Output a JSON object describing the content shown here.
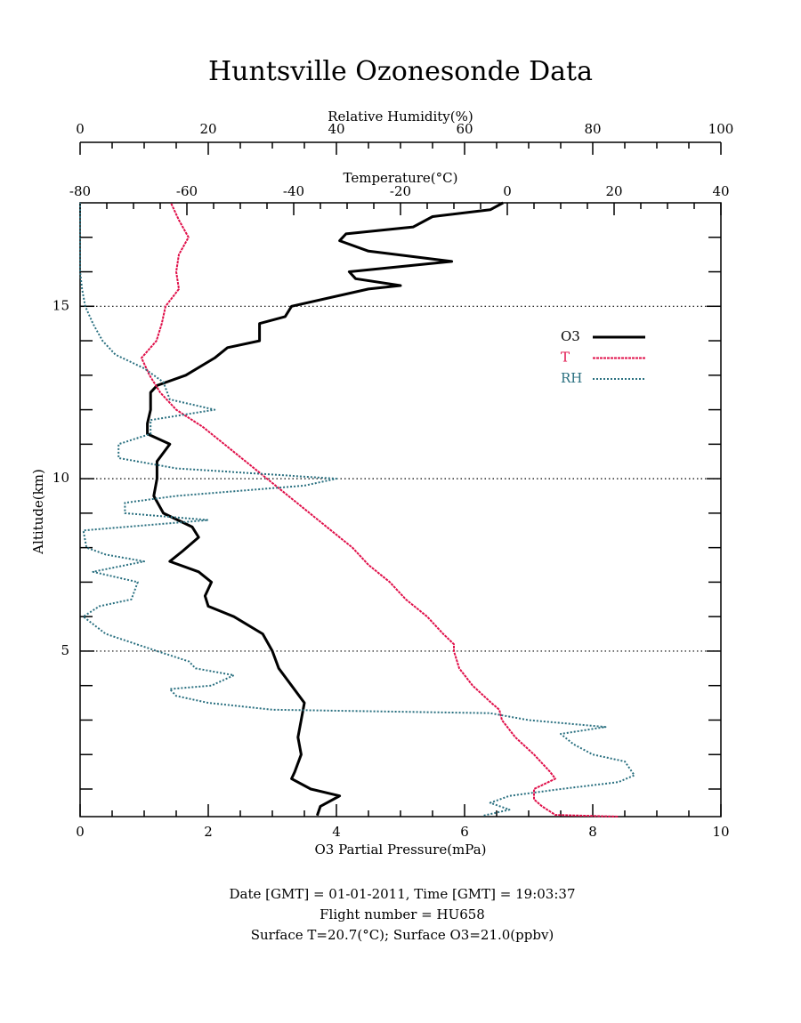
{
  "chart_data": {
    "type": "line",
    "title": "Huntsville Ozonesonde Data",
    "xlabel": "O3 Partial Pressure(mPa)",
    "x2label": "Temperature(°C)",
    "x3label": "Relative Humidity(%)",
    "ylabel": "Altitude(km)",
    "xlim": [
      0,
      10
    ],
    "xticks": [
      0,
      2,
      4,
      6,
      8,
      10
    ],
    "xminorticks": [
      0.5,
      1,
      1.5,
      2.5,
      3,
      3.5,
      4.5,
      5,
      5.5,
      6.5,
      7,
      7.5,
      8.5,
      9,
      9.5
    ],
    "x2lim": [
      -80,
      40
    ],
    "x2ticks": [
      -80,
      -60,
      -40,
      -20,
      0,
      20,
      40
    ],
    "x2minorticks": [
      -75,
      -70,
      -65,
      -55,
      -50,
      -45,
      -35,
      -30,
      -25,
      -15,
      -10,
      -5,
      5,
      10,
      15,
      25,
      30,
      35
    ],
    "x3lim": [
      0,
      100
    ],
    "x3ticks": [
      0,
      20,
      40,
      60,
      80,
      100
    ],
    "x3minorticks": [
      5,
      10,
      15,
      25,
      30,
      35,
      45,
      50,
      55,
      65,
      70,
      75,
      85,
      90,
      95
    ],
    "ylim": [
      0.2,
      18
    ],
    "yticks": [
      5,
      10,
      15
    ],
    "yminorticks": [
      1,
      2,
      3,
      4,
      6,
      7,
      8,
      9,
      11,
      12,
      13,
      14,
      16,
      17
    ],
    "grid": true,
    "legend": "upper right",
    "series": [
      {
        "name": "O3",
        "color": "#000000",
        "axis": "x",
        "altitude": [
          0.23,
          0.5,
          0.8,
          1.0,
          1.3,
          1.5,
          2.0,
          2.5,
          3.0,
          3.5,
          4.0,
          4.5,
          5.0,
          5.5,
          6.0,
          6.3,
          6.6,
          7.0,
          7.3,
          7.6,
          7.9,
          8.3,
          8.6,
          9.0,
          9.5,
          10.0,
          10.5,
          11.0,
          11.3,
          11.6,
          12.0,
          12.5,
          12.7,
          13.0,
          13.5,
          13.8,
          14.0,
          14.5,
          14.7,
          15.0,
          15.5,
          15.6,
          15.8,
          16.0,
          16.3,
          16.6,
          16.9,
          17.1,
          17.3,
          17.6,
          17.8,
          18.0
        ],
        "values": [
          3.7,
          3.75,
          4.05,
          3.6,
          3.3,
          3.35,
          3.45,
          3.4,
          3.45,
          3.5,
          3.3,
          3.1,
          3.0,
          2.85,
          2.4,
          2.0,
          1.95,
          2.05,
          1.85,
          1.4,
          1.6,
          1.85,
          1.75,
          1.3,
          1.15,
          1.2,
          1.2,
          1.4,
          1.05,
          1.05,
          1.1,
          1.1,
          1.2,
          1.65,
          2.1,
          2.3,
          2.8,
          2.8,
          3.2,
          3.3,
          4.5,
          5.0,
          4.3,
          4.2,
          5.8,
          4.5,
          4.05,
          4.15,
          5.2,
          5.5,
          6.4,
          6.6
        ]
      },
      {
        "name": "T",
        "color": "#e0104a",
        "axis": "x2",
        "altitude": [
          0.2,
          0.25,
          0.5,
          0.7,
          1.0,
          1.3,
          1.5,
          2.0,
          2.5,
          3.0,
          3.3,
          3.5,
          4.0,
          4.5,
          5.0,
          5.2,
          5.5,
          6.0,
          6.5,
          7.0,
          7.5,
          8.0,
          8.5,
          9.0,
          9.5,
          10.0,
          10.5,
          11.0,
          11.5,
          12.0,
          12.5,
          13.0,
          13.5,
          14.0,
          14.5,
          15.0,
          15.5,
          16.0,
          16.5,
          17.0,
          17.5,
          18.0
        ],
        "values": [
          20.7,
          9.0,
          6.5,
          5,
          5,
          9,
          8,
          5,
          1.5,
          -1,
          -1.5,
          -3,
          -6.5,
          -9,
          -10,
          -10,
          -12,
          -15,
          -19,
          -22,
          -26,
          -29,
          -33,
          -37,
          -41,
          -45,
          -49,
          -53,
          -57,
          -62,
          -65,
          -67,
          -68.5,
          -65.7,
          -64.7,
          -64,
          -61.5,
          -62,
          -61.5,
          -59.7,
          -61.5,
          -63
        ]
      },
      {
        "name": "RH",
        "color": "#2a7080",
        "axis": "x3",
        "altitude": [
          0.23,
          0.4,
          0.6,
          0.8,
          1.0,
          1.2,
          1.4,
          1.8,
          2.0,
          2.3,
          2.6,
          2.8,
          3.0,
          3.2,
          3.3,
          3.5,
          3.7,
          3.9,
          4.0,
          4.3,
          4.5,
          4.7,
          5.0,
          5.5,
          6.0,
          6.3,
          6.5,
          7.0,
          7.3,
          7.6,
          7.8,
          8.0,
          8.5,
          8.8,
          9.0,
          9.3,
          9.5,
          9.8,
          10.0,
          10.3,
          10.6,
          11.0,
          11.3,
          11.7,
          12.0,
          12.3,
          12.8,
          13.2,
          13.6,
          14.0,
          14.5,
          15.0,
          15.5,
          16.0,
          17.0,
          18.0
        ],
        "values": [
          63,
          67,
          64,
          67,
          75,
          84,
          86.5,
          85,
          80,
          77,
          75,
          82,
          70,
          64,
          30,
          20,
          15,
          14,
          20.5,
          24,
          18,
          17,
          12,
          4,
          0.5,
          3,
          8,
          9,
          2,
          10,
          4,
          1,
          0.5,
          20,
          7,
          7,
          15,
          35,
          40,
          15,
          6,
          6,
          11,
          11,
          21,
          14,
          13,
          10,
          5.5,
          3.5,
          2,
          0.8,
          0.3,
          0,
          0,
          0
        ]
      }
    ],
    "notes": [
      "Date [GMT] = 01-01-2011,  Time [GMT] = 19:03:37",
      "Flight number = HU658",
      "Surface T=20.7(°C); Surface O3=21.0(ppbv)"
    ]
  }
}
